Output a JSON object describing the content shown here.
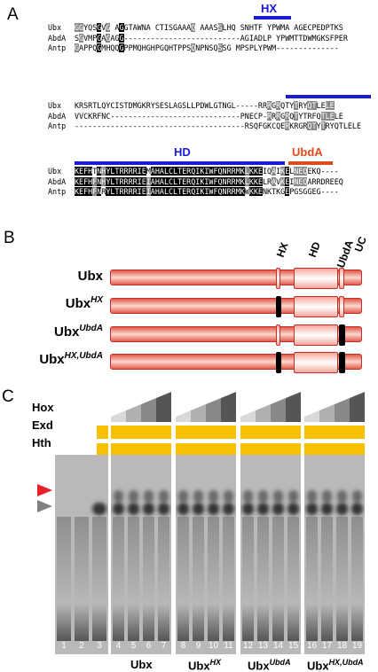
{
  "panels": {
    "a": "A",
    "b": "B",
    "c": "C"
  },
  "alignment": {
    "hx_label": "HX",
    "hd_label": "HD",
    "ubda_label": "UbdA",
    "block1": [
      {
        "name": "Ubx",
        "seq": "GGYQSGVG AGGTAWNA CTISGAAAQ AAASSLHQ SNHTF YPWMA AGECPEDPTKS"
      },
      {
        "name": "AbdA",
        "seq": "SGVMPGAGAGG--------------------------AGIADLP YPWMTTDWMGKSFPER"
      },
      {
        "name": "Antp",
        "seq": "GAPPQGMHQQGPPMQHGHPGQHTPPSQNPNSQSSG MPSPLYPWM--------------"
      }
    ],
    "block2": [
      {
        "name": "Ubx",
        "seq": "KRSRTLQYCISTDMGKRYSESLAGSLLPDWLGTNGL-----RRRGRQTYTRYQTLELE"
      },
      {
        "name": "AbdA",
        "seq": "VVCKRFNC-----------------------------PNECP-RRRGRQTYTRFQTLELE"
      },
      {
        "name": "Antp",
        "seq": "--------------------------------------RSQFGKCQERKRGRQTYTRYQTLELE"
      }
    ],
    "block3": [
      {
        "name": "Ubx",
        "seq": "KEFHTNHYLTRRRRIEMAHALCLTERQIKIWFQNRRMKLKKEIQAIKELNEQEKQ----"
      },
      {
        "name": "AbdA",
        "seq": "KEFHFNHYLTRRRRIEIAHALCLTERQIKIWFQNRRMKLKKELRAVKEINEQARRDREEQ"
      },
      {
        "name": "Antp",
        "seq": "KEFHFNRYLTRRRRIEIAHALCLTERQIKIWFQNRRMKWKKENKTKGEPGSGGEG----"
      }
    ]
  },
  "constructs": {
    "domain_labels": [
      "HX",
      "HD",
      "UbdA",
      "UC"
    ],
    "rows": [
      {
        "base": "Ubx",
        "sup": ""
      },
      {
        "base": "Ubx",
        "sup": "HX"
      },
      {
        "base": "Ubx",
        "sup": "UbdA"
      },
      {
        "base": "Ubx",
        "sup": "HX,UbdA"
      }
    ]
  },
  "emsa": {
    "row_labels": [
      "Hox",
      "Exd",
      "Hth"
    ],
    "lane_numbers": [
      "1",
      "2",
      "3",
      "4",
      "5",
      "6",
      "7",
      "8",
      "9",
      "10",
      "11",
      "12",
      "13",
      "14",
      "15",
      "16",
      "17",
      "18",
      "19"
    ],
    "groups": [
      {
        "base": "Ubx",
        "sup": ""
      },
      {
        "base": "Ubx",
        "sup": "HX"
      },
      {
        "base": "Ubx",
        "sup": "UbdA"
      },
      {
        "base": "Ubx",
        "sup": "HX,UbdA"
      }
    ],
    "arrow_colors": {
      "upper": "#e8202a",
      "lower": "#808080"
    },
    "accent_yellow": "#f7c000"
  }
}
